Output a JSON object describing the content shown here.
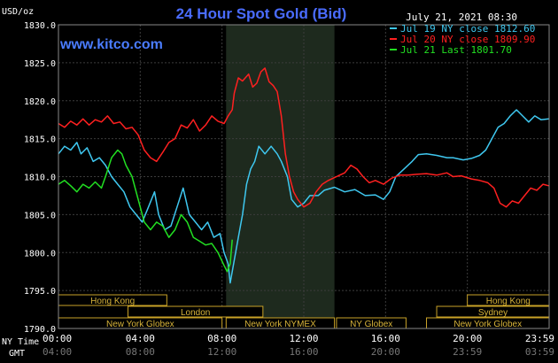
{
  "chart_data": {
    "type": "line",
    "title": "24 Hour Spot Gold (Bid)",
    "site": "www.kitco.com",
    "unit_label": "USD/oz",
    "timestamp": "July 21, 2021 08:30",
    "ylim": [
      1790.0,
      1830.0
    ],
    "xlim": [
      0,
      24
    ],
    "y_ticks": [
      "1830.0",
      "1825.0",
      "1820.0",
      "1815.0",
      "1810.0",
      "1805.0",
      "1800.0",
      "1795.0",
      "1790.0"
    ],
    "x_ticks_ny": [
      "00:00",
      "04:00",
      "08:00",
      "12:00",
      "16:00",
      "20:00",
      "23:59"
    ],
    "x_ticks_gmt": [
      "04:00",
      "08:00",
      "12:00",
      "16:00",
      "20:00",
      "23:59",
      "03:59"
    ],
    "axis_row_labels": {
      "ny": "NY Time",
      "gmt": "GMT"
    },
    "grid": true,
    "legend_position": "top-right",
    "series": [
      {
        "name": "Jul 19 NY close 1812.60",
        "color": "#3fc8f0",
        "points": [
          [
            0,
            1813
          ],
          [
            0.3,
            1814
          ],
          [
            0.6,
            1813.5
          ],
          [
            0.9,
            1814.5
          ],
          [
            1.1,
            1813
          ],
          [
            1.4,
            1813.8
          ],
          [
            1.7,
            1812
          ],
          [
            2,
            1812.5
          ],
          [
            2.3,
            1811.5
          ],
          [
            2.6,
            1810
          ],
          [
            2.9,
            1809
          ],
          [
            3.2,
            1808
          ],
          [
            3.5,
            1806
          ],
          [
            3.8,
            1805
          ],
          [
            4.1,
            1804
          ],
          [
            4.4,
            1806
          ],
          [
            4.7,
            1808
          ],
          [
            4.9,
            1805
          ],
          [
            5.2,
            1803
          ],
          [
            5.5,
            1803.5
          ],
          [
            5.8,
            1806
          ],
          [
            6.1,
            1808.5
          ],
          [
            6.4,
            1805
          ],
          [
            6.7,
            1804
          ],
          [
            7,
            1803
          ],
          [
            7.3,
            1804
          ],
          [
            7.6,
            1802
          ],
          [
            7.9,
            1802.5
          ],
          [
            8.1,
            1800
          ],
          [
            8.3,
            1798.5
          ],
          [
            8.4,
            1796
          ],
          [
            8.6,
            1799
          ],
          [
            8.8,
            1802
          ],
          [
            9,
            1805
          ],
          [
            9.2,
            1809
          ],
          [
            9.4,
            1811
          ],
          [
            9.6,
            1812
          ],
          [
            9.8,
            1814
          ],
          [
            10.1,
            1813
          ],
          [
            10.4,
            1814
          ],
          [
            10.7,
            1813
          ],
          [
            10.9,
            1812
          ],
          [
            11.2,
            1810
          ],
          [
            11.4,
            1807
          ],
          [
            11.7,
            1806
          ],
          [
            12,
            1806.5
          ],
          [
            12.3,
            1807.5
          ],
          [
            12.7,
            1807.5
          ],
          [
            13,
            1808.2
          ],
          [
            13.5,
            1808.6
          ],
          [
            14,
            1808
          ],
          [
            14.5,
            1808.3
          ],
          [
            15,
            1807.5
          ],
          [
            15.5,
            1807.6
          ],
          [
            15.9,
            1807
          ],
          [
            16.2,
            1808
          ],
          [
            16.5,
            1810
          ],
          [
            16.9,
            1811
          ],
          [
            17.3,
            1812
          ],
          [
            17.6,
            1812.9
          ],
          [
            18,
            1813
          ],
          [
            18.5,
            1812.8
          ],
          [
            19,
            1812.5
          ],
          [
            19.3,
            1812.5
          ],
          [
            19.8,
            1812.2
          ],
          [
            20.2,
            1812.4
          ],
          [
            20.6,
            1812.8
          ],
          [
            20.9,
            1813.5
          ],
          [
            21.2,
            1815
          ],
          [
            21.5,
            1816.5
          ],
          [
            21.8,
            1817
          ],
          [
            22.1,
            1818
          ],
          [
            22.4,
            1818.8
          ],
          [
            22.7,
            1818
          ],
          [
            23,
            1817.2
          ],
          [
            23.3,
            1818
          ],
          [
            23.6,
            1817.5
          ],
          [
            23.98,
            1817.6
          ]
        ]
      },
      {
        "name": "Jul 20 NY close 1809.90",
        "color": "#ff2020",
        "points": [
          [
            0,
            1817
          ],
          [
            0.3,
            1816.5
          ],
          [
            0.6,
            1817.3
          ],
          [
            0.9,
            1816.8
          ],
          [
            1.2,
            1817.6
          ],
          [
            1.5,
            1816.8
          ],
          [
            1.8,
            1817.5
          ],
          [
            2.1,
            1817.2
          ],
          [
            2.4,
            1818
          ],
          [
            2.7,
            1817
          ],
          [
            3,
            1817.2
          ],
          [
            3.3,
            1816.3
          ],
          [
            3.6,
            1816.5
          ],
          [
            3.9,
            1815.5
          ],
          [
            4.2,
            1813.5
          ],
          [
            4.5,
            1812.5
          ],
          [
            4.8,
            1812
          ],
          [
            5.1,
            1813.2
          ],
          [
            5.4,
            1814.5
          ],
          [
            5.7,
            1815
          ],
          [
            6,
            1816.8
          ],
          [
            6.3,
            1816.4
          ],
          [
            6.6,
            1817.5
          ],
          [
            6.9,
            1816
          ],
          [
            7.2,
            1816.8
          ],
          [
            7.5,
            1818
          ],
          [
            7.8,
            1817.3
          ],
          [
            8.1,
            1817
          ],
          [
            8.3,
            1818
          ],
          [
            8.5,
            1818.8
          ],
          [
            8.6,
            1821
          ],
          [
            8.8,
            1823
          ],
          [
            9,
            1822.6
          ],
          [
            9.3,
            1823.5
          ],
          [
            9.5,
            1821.8
          ],
          [
            9.7,
            1822.3
          ],
          [
            9.9,
            1823.8
          ],
          [
            10.1,
            1824.3
          ],
          [
            10.3,
            1822.5
          ],
          [
            10.5,
            1822
          ],
          [
            10.7,
            1821.2
          ],
          [
            10.9,
            1818
          ],
          [
            11.1,
            1813
          ],
          [
            11.3,
            1810
          ],
          [
            11.5,
            1808
          ],
          [
            11.7,
            1807
          ],
          [
            12,
            1806
          ],
          [
            12.3,
            1806.5
          ],
          [
            12.6,
            1808
          ],
          [
            12.9,
            1809
          ],
          [
            13.2,
            1809.5
          ],
          [
            13.6,
            1810
          ],
          [
            14,
            1810.5
          ],
          [
            14.3,
            1811.5
          ],
          [
            14.6,
            1811
          ],
          [
            14.9,
            1810
          ],
          [
            15.2,
            1809.2
          ],
          [
            15.5,
            1809.5
          ],
          [
            15.9,
            1809
          ],
          [
            16.3,
            1809.8
          ],
          [
            16.7,
            1810.2
          ],
          [
            17.1,
            1810.2
          ],
          [
            17.5,
            1810.3
          ],
          [
            18,
            1810.4
          ],
          [
            18.5,
            1810.2
          ],
          [
            19,
            1810.5
          ],
          [
            19.3,
            1810
          ],
          [
            19.7,
            1810.1
          ],
          [
            20.2,
            1809.7
          ],
          [
            20.6,
            1809.5
          ],
          [
            21,
            1809.2
          ],
          [
            21.3,
            1808.5
          ],
          [
            21.6,
            1806.5
          ],
          [
            21.9,
            1806
          ],
          [
            22.2,
            1806.8
          ],
          [
            22.5,
            1806.5
          ],
          [
            22.8,
            1807.5
          ],
          [
            23.1,
            1808.5
          ],
          [
            23.4,
            1808.2
          ],
          [
            23.7,
            1809
          ],
          [
            23.98,
            1808.8
          ]
        ]
      },
      {
        "name": "Jul 21 Last 1801.70",
        "color": "#22e022",
        "points": [
          [
            0,
            1809
          ],
          [
            0.3,
            1809.5
          ],
          [
            0.6,
            1808.8
          ],
          [
            0.9,
            1808
          ],
          [
            1.2,
            1809
          ],
          [
            1.5,
            1808.5
          ],
          [
            1.8,
            1809.3
          ],
          [
            2.1,
            1808.5
          ],
          [
            2.3,
            1810
          ],
          [
            2.6,
            1812.5
          ],
          [
            2.9,
            1813.5
          ],
          [
            3.1,
            1813
          ],
          [
            3.3,
            1811.5
          ],
          [
            3.6,
            1810
          ],
          [
            3.9,
            1807
          ],
          [
            4.2,
            1804
          ],
          [
            4.5,
            1803
          ],
          [
            4.8,
            1804
          ],
          [
            5.1,
            1803.5
          ],
          [
            5.4,
            1802
          ],
          [
            5.7,
            1803
          ],
          [
            6,
            1805
          ],
          [
            6.3,
            1804
          ],
          [
            6.6,
            1802
          ],
          [
            6.9,
            1801.5
          ],
          [
            7.2,
            1801
          ],
          [
            7.5,
            1801.2
          ],
          [
            7.8,
            1800
          ],
          [
            8.1,
            1798.3
          ],
          [
            8.25,
            1797.5
          ],
          [
            8.4,
            1798.5
          ],
          [
            8.5,
            1801.7
          ]
        ]
      }
    ],
    "sessions": [
      {
        "label": "Hong Kong",
        "row": 0,
        "start": 0,
        "end": 5.3
      },
      {
        "label": "London",
        "row": 1,
        "start": 3.4,
        "end": 10.0
      },
      {
        "label": "New York Globex",
        "row": 2,
        "start": 0,
        "end": 8.0
      },
      {
        "label": "New York NYMEX",
        "row": 2,
        "start": 8.2,
        "end": 13.5
      },
      {
        "label": "NY Globex",
        "row": 2,
        "start": 13.6,
        "end": 17.0
      },
      {
        "label": "Hong Kong",
        "row": 0,
        "start": 20.0,
        "end": 24.0
      },
      {
        "label": "Sydney",
        "row": 1,
        "start": 18.5,
        "end": 24.0
      },
      {
        "label": "New York Globex",
        "row": 2,
        "start": 18.0,
        "end": 24.0
      }
    ],
    "highlight_range": [
      8.2,
      13.5
    ]
  }
}
